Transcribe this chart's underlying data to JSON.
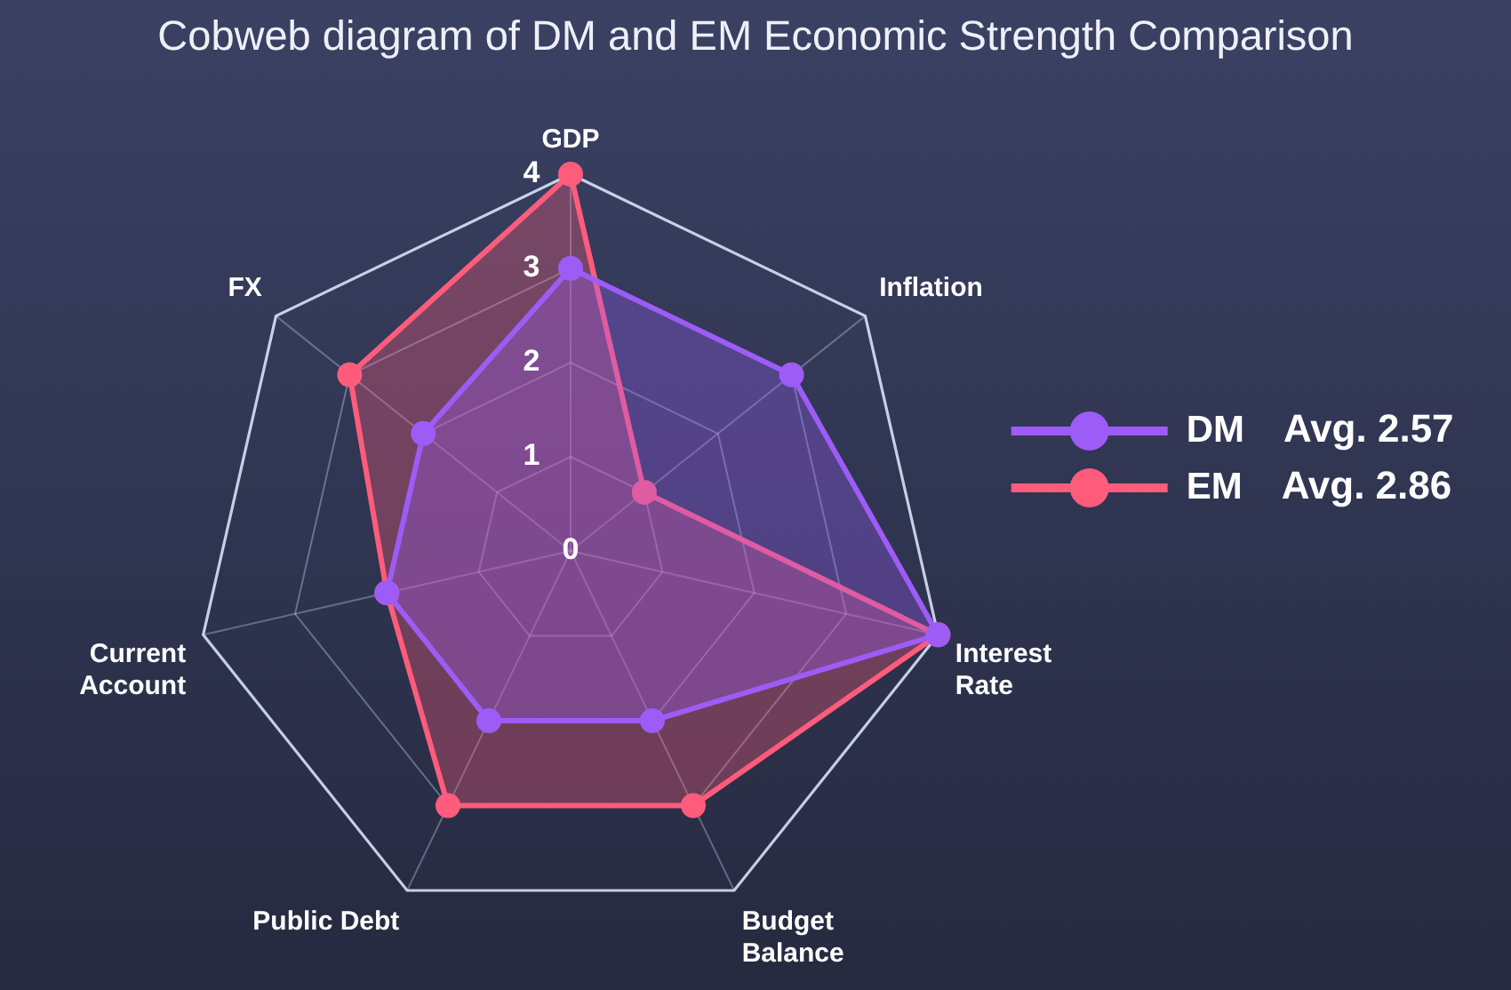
{
  "chart_data": {
    "type": "radar",
    "title": "Cobweb diagram of DM and EM Economic Strength Comparison",
    "categories": [
      "GDP",
      "Inflation",
      "Interest Rate",
      "Budget Balance",
      "Public Debt",
      "Current Account",
      "FX"
    ],
    "series": [
      {
        "name": "DM",
        "color": "#9d5cf5",
        "values": [
          3,
          3,
          4,
          2,
          2,
          2,
          2
        ]
      },
      {
        "name": "EM",
        "color": "#ff5c7c",
        "values": [
          4,
          1,
          4,
          3,
          3,
          2,
          3
        ]
      }
    ],
    "ylim": [
      0,
      4
    ],
    "yticks": [
      0,
      1,
      2,
      3,
      4
    ],
    "grid": true,
    "legend": "right",
    "marker": "circle",
    "line_style": "solid",
    "annotations": [
      "Avg. 2.57",
      "Avg. 2.86"
    ]
  }
}
